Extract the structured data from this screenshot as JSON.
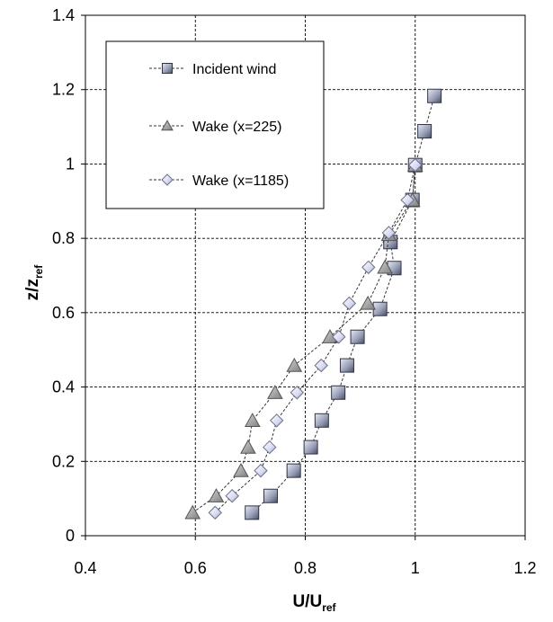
{
  "chart_data": {
    "type": "scatter",
    "xlabel": {
      "main": "U/U",
      "sub": "ref"
    },
    "ylabel": {
      "main": "z/z",
      "sub": "ref"
    },
    "xlim": [
      0.4,
      1.2
    ],
    "ylim": [
      0,
      1.4
    ],
    "xticks": [
      0.4,
      0.6,
      0.8,
      1.0,
      1.2
    ],
    "yticks": [
      0,
      0.2,
      0.4,
      0.6,
      0.8,
      1.0,
      1.2,
      1.4
    ],
    "xtick_labels": [
      "0.4",
      "0.6",
      "0.8",
      "1",
      "1.2"
    ],
    "ytick_labels": [
      "0",
      "0.2",
      "0.4",
      "0.6",
      "0.8",
      "1",
      "1.2",
      "1.4"
    ],
    "grid": true,
    "legend_position": "top-left",
    "series": [
      {
        "name": "Incident wind",
        "marker": "square",
        "x": [
          0.703,
          0.737,
          0.779,
          0.81,
          0.83,
          0.86,
          0.876,
          0.895,
          0.936,
          0.962,
          0.955,
          0.995,
          1.0,
          1.017,
          1.035
        ],
        "y": [
          0.062,
          0.107,
          0.175,
          0.238,
          0.31,
          0.385,
          0.458,
          0.535,
          0.61,
          0.72,
          0.79,
          0.903,
          0.997,
          1.088,
          1.183
        ]
      },
      {
        "name": "Wake (x=225)",
        "marker": "triangle",
        "x": [
          0.595,
          0.638,
          0.683,
          0.696,
          0.704,
          0.745,
          0.78,
          0.845,
          0.914,
          0.945,
          0.952,
          0.995,
          1.0
        ],
        "y": [
          0.062,
          0.107,
          0.175,
          0.238,
          0.31,
          0.385,
          0.458,
          0.535,
          0.625,
          0.722,
          0.81,
          0.903,
          0.997
        ]
      },
      {
        "name": "Wake (x=1185)",
        "marker": "diamond",
        "x": [
          0.636,
          0.667,
          0.719,
          0.735,
          0.748,
          0.785,
          0.829,
          0.861,
          0.88,
          0.915,
          0.952,
          0.986,
          1.0
        ],
        "y": [
          0.062,
          0.107,
          0.175,
          0.238,
          0.31,
          0.385,
          0.458,
          0.535,
          0.625,
          0.722,
          0.815,
          0.903,
          0.997
        ]
      }
    ]
  }
}
